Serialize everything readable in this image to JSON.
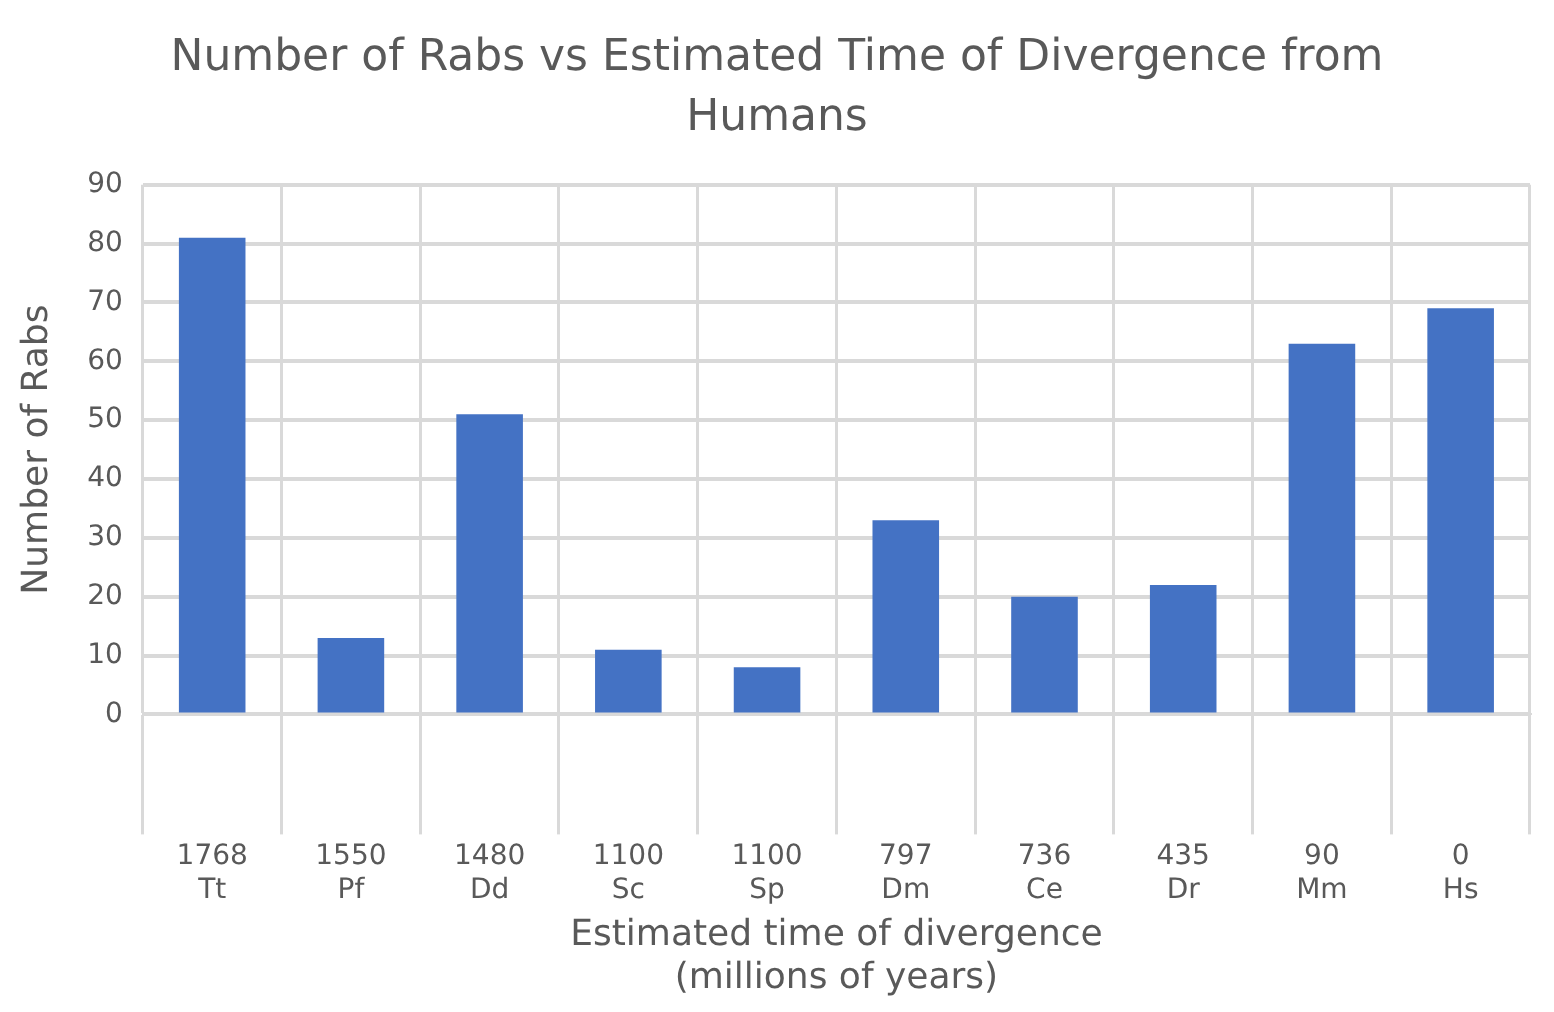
{
  "chart_data": {
    "type": "bar",
    "title": "Number of Rabs vs Estimated Time of Divergence from Humans",
    "xlabel": "Estimated time of divergence\n(millions of years)",
    "ylabel": "Number of Rabs",
    "categories": [
      "1768\nTt",
      "1550\nPf",
      "1480\nDd",
      "1100\nSc",
      "1100\nSp",
      "797\nDm",
      "736\nCe",
      "435\nDr",
      "90\nMm",
      "0\nHs"
    ],
    "values": [
      81,
      13,
      51,
      11,
      8,
      33,
      20,
      22,
      63,
      69
    ],
    "color": "#4472c4",
    "ylim": [
      0,
      90
    ],
    "yticks": [
      0,
      10,
      20,
      30,
      40,
      50,
      60,
      70,
      80,
      90
    ],
    "grid": true
  }
}
